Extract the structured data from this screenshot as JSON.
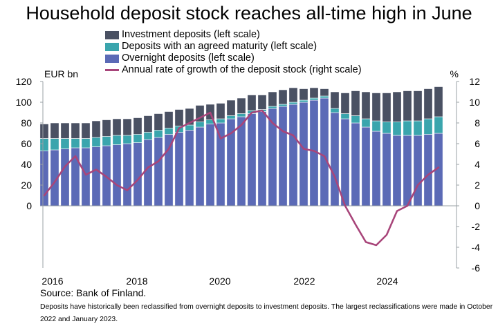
{
  "chart_data": {
    "type": "bar",
    "title": "Household deposit stock reaches all-time high in June",
    "left_axis_unit": "EUR bn",
    "right_axis_unit": "%",
    "left_ylim": [
      -60,
      120
    ],
    "left_yticks": [
      0,
      20,
      40,
      60,
      80,
      100,
      120
    ],
    "right_ylim": [
      -6,
      12
    ],
    "right_yticks": [
      12,
      10,
      8,
      6,
      4,
      2,
      0,
      -2,
      -4,
      -6
    ],
    "x_ticks": [
      "2016",
      "2018",
      "2020",
      "2022",
      "2024"
    ],
    "legend": [
      "Investment deposits (left scale)",
      "Deposits with an agreed maturity (left scale)",
      "Overnight deposits (left scale)",
      "Annual rate of growth of the deposit stock (right scale)"
    ],
    "legend_placement": "top",
    "colors": {
      "investment": "#4a5163",
      "agreed": "#3aa5ad",
      "overnight": "#5b6ab6",
      "growth": "#a8457a",
      "axis": "#9aa0a6"
    },
    "x": [
      "2015-12",
      "2016-03",
      "2016-06",
      "2016-09",
      "2016-12",
      "2017-03",
      "2017-06",
      "2017-09",
      "2017-12",
      "2018-03",
      "2018-06",
      "2018-09",
      "2018-12",
      "2019-03",
      "2019-06",
      "2019-09",
      "2019-12",
      "2020-03",
      "2020-06",
      "2020-09",
      "2020-12",
      "2021-03",
      "2021-06",
      "2021-09",
      "2021-12",
      "2022-03",
      "2022-06",
      "2022-09",
      "2022-12",
      "2023-03",
      "2023-06",
      "2023-09",
      "2023-12",
      "2024-03",
      "2024-06",
      "2024-09",
      "2024-12",
      "2025-03",
      "2025-06"
    ],
    "series": [
      {
        "name": "Overnight deposits (left scale)",
        "stack": "deposits",
        "values": [
          53,
          54,
          55,
          56,
          56,
          57,
          58,
          59,
          60,
          61,
          64,
          66,
          69,
          71,
          73,
          76,
          79,
          80,
          84,
          86,
          89,
          91,
          94,
          96,
          98,
          100,
          102,
          104,
          90,
          84,
          80,
          76,
          72,
          70,
          68,
          68,
          68,
          69,
          70
        ]
      },
      {
        "name": "Deposits with an agreed maturity (left scale)",
        "stack": "deposits",
        "values": [
          12,
          11,
          10,
          9,
          9,
          9,
          9,
          9,
          8,
          8,
          7,
          7,
          6,
          6,
          5,
          5,
          4,
          4,
          3,
          3,
          3,
          2,
          2,
          2,
          2,
          2,
          2,
          2,
          4,
          5,
          7,
          8,
          10,
          11,
          13,
          14,
          14,
          15,
          16
        ]
      },
      {
        "name": "Investment deposits (left scale)",
        "stack": "deposits",
        "values": [
          14,
          15,
          15,
          15,
          15,
          16,
          16,
          16,
          16,
          16,
          16,
          16,
          16,
          16,
          16,
          16,
          15,
          15,
          15,
          15,
          15,
          14,
          14,
          14,
          14,
          11,
          10,
          7,
          16,
          20,
          24,
          26,
          27,
          28,
          29,
          29,
          29,
          29,
          29
        ]
      },
      {
        "name": "Annual rate of growth of the deposit stock (right scale)",
        "axis": "right",
        "type": "line",
        "values": [
          1.0,
          2.3,
          3.8,
          4.8,
          3.0,
          3.5,
          2.8,
          2.0,
          1.5,
          2.5,
          3.7,
          4.3,
          5.5,
          7.5,
          8.0,
          8.5,
          9.0,
          6.5,
          7.0,
          7.8,
          9.0,
          9.2,
          8.0,
          7.2,
          6.8,
          5.5,
          5.3,
          4.8,
          2.8,
          0.0,
          -1.8,
          -3.5,
          -3.8,
          -2.8,
          -0.5,
          0.0,
          2.0,
          3.0,
          3.7
        ]
      }
    ]
  },
  "source": "Source: Bank of Finland.",
  "footnote": "Deposits have historically been reclassified from overnight deposits to investment deposits. The largest reclassifications were made in October 2022 and January 2023."
}
